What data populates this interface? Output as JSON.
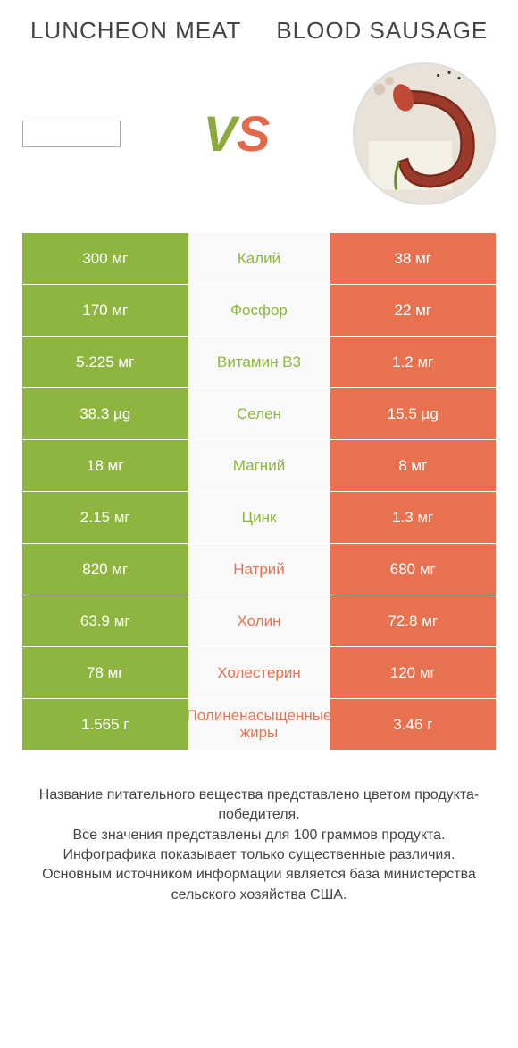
{
  "header": {
    "left_title": "LUNCHEON MEAT",
    "right_title": "BLOOD SAUSAGE",
    "vs_v": "V",
    "vs_s": "S"
  },
  "colors": {
    "green": "#8eb53f",
    "orange": "#e8724f",
    "text": "#444444",
    "bg": "#ffffff"
  },
  "rows": [
    {
      "left": "300 мг",
      "label": "Калий",
      "right": "38 мг",
      "winner": "left"
    },
    {
      "left": "170 мг",
      "label": "Фосфор",
      "right": "22 мг",
      "winner": "left"
    },
    {
      "left": "5.225 мг",
      "label": "Витамин B3",
      "right": "1.2 мг",
      "winner": "left"
    },
    {
      "left": "38.3 µg",
      "label": "Селен",
      "right": "15.5 µg",
      "winner": "left"
    },
    {
      "left": "18 мг",
      "label": "Магний",
      "right": "8 мг",
      "winner": "left"
    },
    {
      "left": "2.15 мг",
      "label": "Цинк",
      "right": "1.3 мг",
      "winner": "left"
    },
    {
      "left": "820 мг",
      "label": "Натрий",
      "right": "680 мг",
      "winner": "right"
    },
    {
      "left": "63.9 мг",
      "label": "Холин",
      "right": "72.8 мг",
      "winner": "right"
    },
    {
      "left": "78 мг",
      "label": "Холестерин",
      "right": "120 мг",
      "winner": "right"
    },
    {
      "left": "1.565 г",
      "label": "Полиненасыщенные жиры",
      "right": "3.46 г",
      "winner": "right"
    }
  ],
  "footer": {
    "line1": "Название питательного вещества представлено цветом продукта-победителя.",
    "line2": "Все значения представлены для 100 граммов продукта.",
    "line3": "Инфографика показывает только существенные различия.",
    "line4": "Основным источником информации является база министерства сельского хозяйства США."
  }
}
